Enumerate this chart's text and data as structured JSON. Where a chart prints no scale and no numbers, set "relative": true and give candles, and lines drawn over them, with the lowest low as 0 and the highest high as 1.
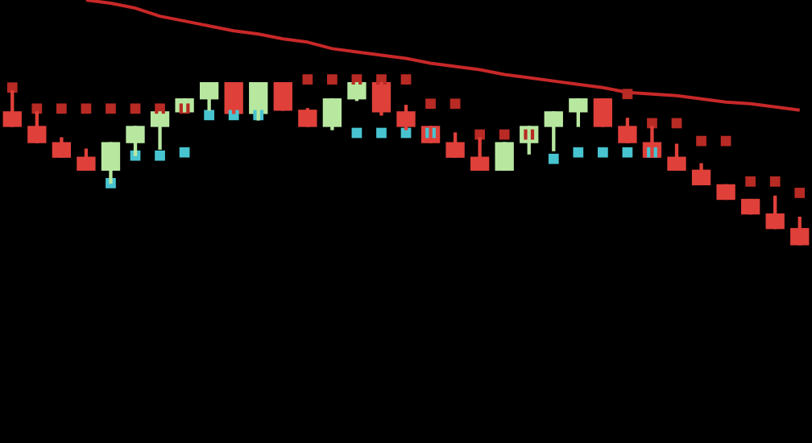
{
  "chart_data": {
    "type": "candlestick",
    "relative": true,
    "categories": [
      null,
      null,
      null,
      null,
      null,
      null,
      null,
      null,
      null,
      null,
      null,
      null,
      null,
      null,
      null,
      null,
      null,
      null,
      null,
      null,
      null,
      null,
      null,
      null,
      null,
      null,
      null,
      null,
      null,
      null,
      null,
      null,
      null
    ],
    "ohlc": [
      [
        0.82,
        0.95,
        0.73,
        0.73
      ],
      [
        0.73,
        0.82,
        0.63,
        0.63
      ],
      [
        0.63,
        0.66,
        0.54,
        0.54
      ],
      [
        0.54,
        0.59,
        0.46,
        0.46
      ],
      [
        0.46,
        0.63,
        0.38,
        0.63
      ],
      [
        0.63,
        0.73,
        0.55,
        0.73
      ],
      [
        0.73,
        0.82,
        0.59,
        0.82
      ],
      [
        0.82,
        0.9,
        0.82,
        0.9
      ],
      [
        0.9,
        1.0,
        0.83,
        1.0
      ],
      [
        1.0,
        1.0,
        0.81,
        0.81
      ],
      [
        0.81,
        1.0,
        0.77,
        1.0
      ],
      [
        1.0,
        1.0,
        0.83,
        0.83
      ],
      [
        0.83,
        0.84,
        0.73,
        0.73
      ],
      [
        0.73,
        0.9,
        0.71,
        0.9
      ],
      [
        0.9,
        1.0,
        0.89,
        1.0
      ],
      [
        1.0,
        1.0,
        0.8,
        0.82
      ],
      [
        0.82,
        0.86,
        0.71,
        0.73
      ],
      [
        0.73,
        0.73,
        0.63,
        0.63
      ],
      [
        0.63,
        0.69,
        0.54,
        0.54
      ],
      [
        0.54,
        0.66,
        0.46,
        0.46
      ],
      [
        0.46,
        0.63,
        0.46,
        0.63
      ],
      [
        0.63,
        0.73,
        0.56,
        0.73
      ],
      [
        0.73,
        0.82,
        0.58,
        0.82
      ],
      [
        0.82,
        0.9,
        0.73,
        0.9
      ],
      [
        0.9,
        0.9,
        0.73,
        0.73
      ],
      [
        0.73,
        0.78,
        0.63,
        0.63
      ],
      [
        0.63,
        0.73,
        0.54,
        0.54
      ],
      [
        0.54,
        0.62,
        0.46,
        0.46
      ],
      [
        0.46,
        0.5,
        0.37,
        0.37
      ],
      [
        0.37,
        0.37,
        0.28,
        0.28
      ],
      [
        0.28,
        0.28,
        0.19,
        0.19
      ],
      [
        0.19,
        0.3,
        0.1,
        0.1
      ],
      [
        0.1,
        0.17,
        0.0,
        0.0
      ]
    ],
    "colors": [
      "#e0403a",
      "#e0403a",
      "#e0403a",
      "#e0403a",
      "#b8e8a0",
      "#b8e8a0",
      "#b8e8a0",
      "#b8e8a0",
      "#b8e8a0",
      "#e0403a",
      "#b8e8a0",
      "#e0403a",
      "#e0403a",
      "#b8e8a0",
      "#b8e8a0",
      "#e0403a",
      "#e0403a",
      "#e0403a",
      "#e0403a",
      "#e0403a",
      "#b8e8a0",
      "#b8e8a0",
      "#b8e8a0",
      "#b8e8a0",
      "#e0403a",
      "#e0403a",
      "#e0403a",
      "#e0403a",
      "#e0403a",
      "#e0403a",
      "#e0403a",
      "#e0403a",
      "#e0403a"
    ],
    "series": [
      {
        "type": "line",
        "color": "#c82828",
        "values": [
          null,
          null,
          null,
          1.51,
          1.49,
          1.46,
          1.41,
          1.38,
          1.35,
          1.32,
          1.3,
          1.27,
          1.25,
          1.21,
          1.19,
          1.17,
          1.15,
          1.12,
          1.1,
          1.08,
          1.05,
          1.03,
          1.01,
          0.99,
          0.97,
          0.94,
          0.93,
          0.92,
          0.9,
          0.88,
          0.87,
          0.85,
          0.83
        ]
      },
      {
        "type": "scatter",
        "color": "#b82a24",
        "values": [
          0.97,
          0.84,
          0.84,
          0.84,
          0.84,
          0.84,
          0.84,
          0.84,
          null,
          null,
          null,
          null,
          1.02,
          1.02,
          1.02,
          1.02,
          1.02,
          0.87,
          0.87,
          0.68,
          0.68,
          0.68,
          null,
          null,
          null,
          0.93,
          0.75,
          0.75,
          0.64,
          0.64,
          0.39,
          0.39,
          0.32
        ]
      },
      {
        "type": "scatter",
        "color": "#48c4d0",
        "values": [
          null,
          null,
          null,
          null,
          0.38,
          0.55,
          0.55,
          0.57,
          0.8,
          0.8,
          0.8,
          null,
          null,
          null,
          0.69,
          0.69,
          0.69,
          0.69,
          null,
          null,
          null,
          null,
          0.53,
          0.57,
          0.57,
          0.57,
          0.57,
          null,
          null,
          null,
          null,
          null,
          null
        ]
      }
    ]
  }
}
